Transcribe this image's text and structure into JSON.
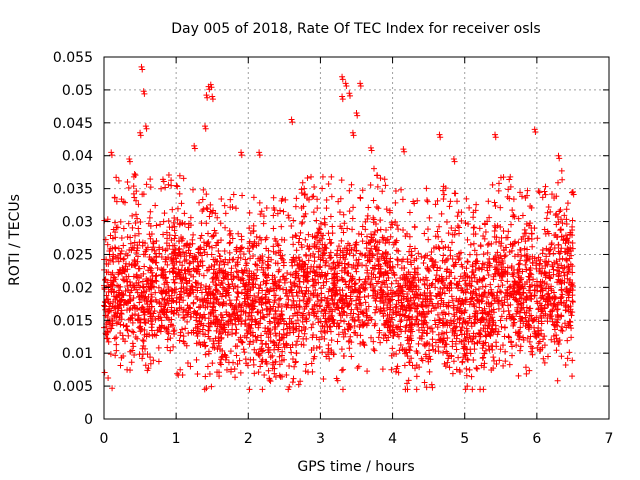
{
  "chart_data": {
    "type": "scatter",
    "title": "Day 005 of 2018, Rate Of TEC Index for receiver osls",
    "xlabel": "GPS time / hours",
    "ylabel": "ROTI / TECUs",
    "xlim": [
      0,
      7
    ],
    "ylim": [
      0,
      0.055
    ],
    "x_ticks": [
      0,
      1,
      2,
      3,
      4,
      5,
      6,
      7
    ],
    "x_tick_labels": [
      "0",
      "1",
      "2",
      "3",
      "4",
      "5",
      "6",
      "7"
    ],
    "y_ticks": [
      0,
      0.005,
      0.01,
      0.015,
      0.02,
      0.025,
      0.03,
      0.035,
      0.04,
      0.045,
      0.05,
      0.055
    ],
    "y_tick_labels": [
      "0",
      "0.005",
      "0.01",
      "0.015",
      "0.02",
      "0.025",
      "0.03",
      "0.035",
      "0.04",
      "0.045",
      "0.05",
      "0.055"
    ],
    "grid": true,
    "marker": "+",
    "color": "#ff0000",
    "data_x_range": [
      0,
      6.5
    ],
    "dense_band": [
      0.008,
      0.03
    ],
    "outliers": [
      [
        0.52,
        0.0535
      ],
      [
        0.55,
        0.0498
      ],
      [
        0.5,
        0.0435
      ],
      [
        0.58,
        0.0445
      ],
      [
        1.45,
        0.0505
      ],
      [
        1.48,
        0.0508
      ],
      [
        1.42,
        0.0492
      ],
      [
        1.5,
        0.049
      ],
      [
        1.4,
        0.0445
      ],
      [
        3.3,
        0.052
      ],
      [
        3.35,
        0.051
      ],
      [
        3.3,
        0.049
      ],
      [
        3.4,
        0.0495
      ],
      [
        3.55,
        0.051
      ],
      [
        3.5,
        0.0465
      ],
      [
        3.45,
        0.0435
      ],
      [
        2.6,
        0.0455
      ],
      [
        4.65,
        0.0432
      ],
      [
        5.42,
        0.0432
      ],
      [
        5.97,
        0.044
      ],
      [
        0.1,
        0.0405
      ],
      [
        0.35,
        0.0395
      ],
      [
        1.25,
        0.0415
      ],
      [
        1.9,
        0.0405
      ],
      [
        2.15,
        0.0405
      ],
      [
        3.7,
        0.0412
      ],
      [
        4.15,
        0.041
      ],
      [
        6.3,
        0.04
      ],
      [
        4.85,
        0.0395
      ],
      [
        6.5,
        0.0345
      ]
    ]
  }
}
